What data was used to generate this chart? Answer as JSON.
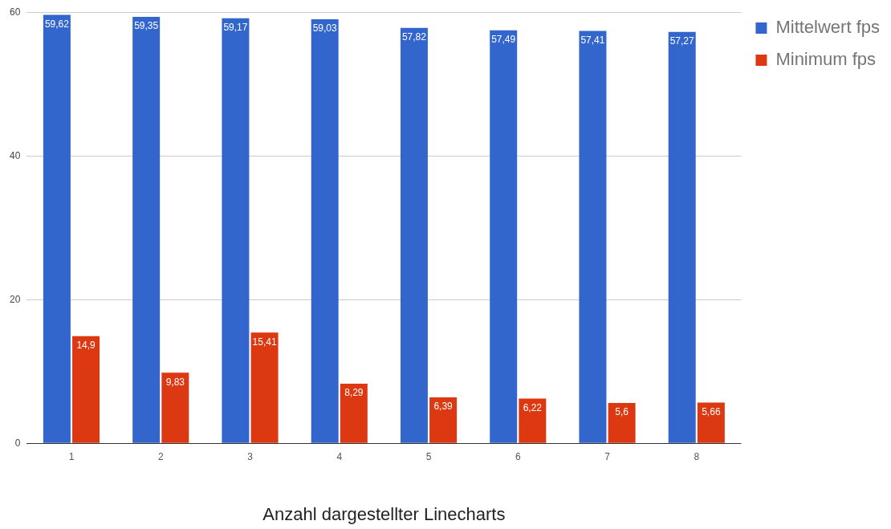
{
  "chart_data": {
    "type": "bar",
    "xlabel": "Anzahl dargestellter Linecharts",
    "categories": [
      "1",
      "2",
      "3",
      "4",
      "5",
      "6",
      "7",
      "8"
    ],
    "series": [
      {
        "name": "Mittelwert fps",
        "color": "#3366cc",
        "values": [
          59.62,
          59.35,
          59.17,
          59.03,
          57.82,
          57.49,
          57.41,
          57.27
        ],
        "value_labels": [
          "59,62",
          "59,35",
          "59,17",
          "59,03",
          "57,82",
          "57,49",
          "57,41",
          "57,27"
        ]
      },
      {
        "name": "Minimum fps",
        "color": "#dc3912",
        "values": [
          14.9,
          9.83,
          15.41,
          8.29,
          6.39,
          6.22,
          5.6,
          5.66
        ],
        "value_labels": [
          "14,9",
          "9,83",
          "15,41",
          "8,29",
          "6,39",
          "6,22",
          "5,6",
          "5,66"
        ]
      }
    ],
    "ylim": [
      0,
      60
    ],
    "yticks": [
      0,
      20,
      40,
      60
    ],
    "grid": "y",
    "legend": "top right"
  }
}
